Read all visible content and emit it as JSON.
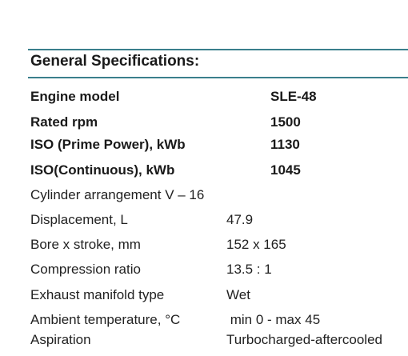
{
  "section": {
    "title": "General Specifications:"
  },
  "specs_bold": [
    {
      "label": "Engine model",
      "value": "SLE-48"
    },
    {
      "label": "Rated rpm",
      "value": "1500"
    },
    {
      "label": "ISO (Prime Power), kWb",
      "value": "1130"
    },
    {
      "label": "ISO(Continuous), kWb",
      "value": "1045"
    }
  ],
  "specs_plain": [
    {
      "label": "Cylinder arrangement V – 16",
      "value": ""
    },
    {
      "label": "Displacement, L",
      "value": "47.9"
    },
    {
      "label": "Bore  x stroke, mm",
      "value": "152 x 165"
    },
    {
      "label": "Compression ratio",
      "value": "13.5 : 1"
    },
    {
      "label": "Exhaust manifold type",
      "value": "Wet"
    },
    {
      "label": "Ambient temperature, °C",
      "value": " min 0 - max 45"
    },
    {
      "label": "Aspiration",
      "value": "Turbocharged-aftercooled"
    }
  ],
  "colors": {
    "rule": "#3a7f8c",
    "text": "#1a1a1a"
  }
}
